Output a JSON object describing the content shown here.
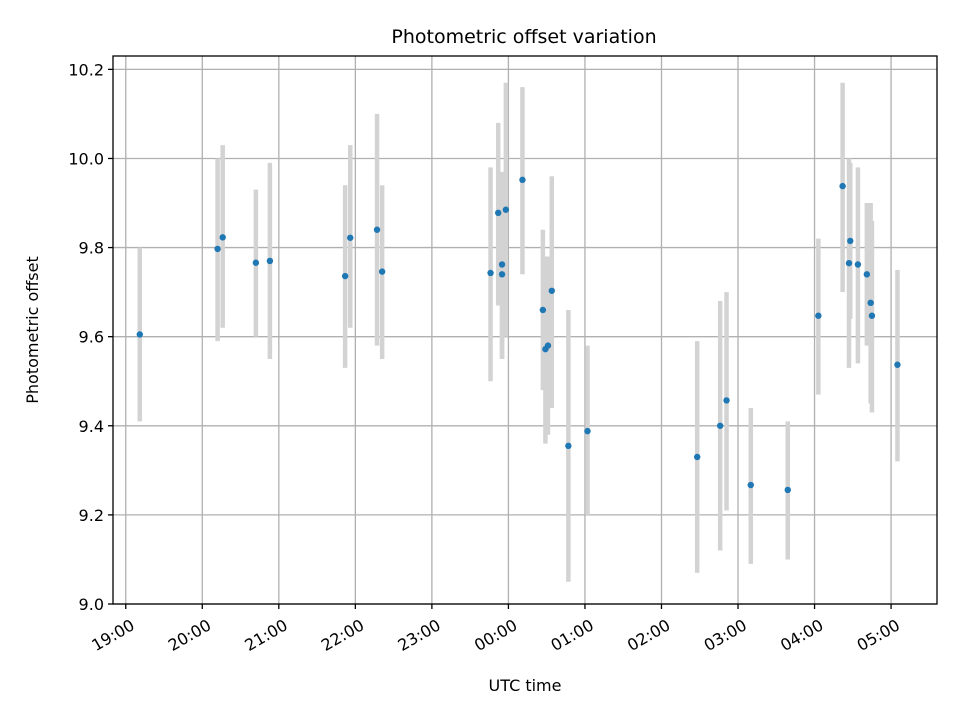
{
  "chart_data": {
    "type": "scatter",
    "title": "Photometric offset variation",
    "xlabel": "UTC time",
    "ylabel": "Photometric offset",
    "grid": true,
    "colors": {
      "point": "#1f77b4",
      "errorbar": "#d3d3d3",
      "grid": "#b0b0b0"
    },
    "xlim": [
      "18:50",
      "05:36"
    ],
    "ylim": [
      9.0,
      10.23
    ],
    "x_ticks": [
      "19:00",
      "20:00",
      "21:00",
      "22:00",
      "23:00",
      "00:00",
      "01:00",
      "02:00",
      "03:00",
      "04:00",
      "05:00"
    ],
    "y_ticks": [
      "9.0",
      "9.2",
      "9.4",
      "9.6",
      "9.8",
      "10.0",
      "10.2"
    ],
    "series": [
      {
        "points": [
          {
            "x": "19:11",
            "y": 9.605,
            "lo": 9.41,
            "hi": 9.8
          },
          {
            "x": "20:12",
            "y": 9.797,
            "lo": 9.59,
            "hi": 10.0
          },
          {
            "x": "20:16",
            "y": 9.823,
            "lo": 9.62,
            "hi": 10.03
          },
          {
            "x": "20:42",
            "y": 9.766,
            "lo": 9.6,
            "hi": 9.93
          },
          {
            "x": "20:53",
            "y": 9.77,
            "lo": 9.55,
            "hi": 9.99
          },
          {
            "x": "21:52",
            "y": 9.736,
            "lo": 9.53,
            "hi": 9.94
          },
          {
            "x": "21:56",
            "y": 9.822,
            "lo": 9.62,
            "hi": 10.03
          },
          {
            "x": "22:17",
            "y": 9.84,
            "lo": 9.58,
            "hi": 10.1
          },
          {
            "x": "22:21",
            "y": 9.746,
            "lo": 9.55,
            "hi": 9.94
          },
          {
            "x": "23:46",
            "y": 9.743,
            "lo": 9.5,
            "hi": 9.98
          },
          {
            "x": "23:52",
            "y": 9.878,
            "lo": 9.67,
            "hi": 10.08
          },
          {
            "x": "23:55",
            "y": 9.762,
            "lo": 9.55,
            "hi": 9.97
          },
          {
            "x": "23:55",
            "y": 9.74,
            "lo": 9.55,
            "hi": 9.93
          },
          {
            "x": "23:58",
            "y": 9.885,
            "lo": 9.6,
            "hi": 10.17
          },
          {
            "x": "00:11",
            "y": 9.952,
            "lo": 9.74,
            "hi": 10.16
          },
          {
            "x": "00:27",
            "y": 9.66,
            "lo": 9.48,
            "hi": 9.84
          },
          {
            "x": "00:29",
            "y": 9.572,
            "lo": 9.36,
            "hi": 9.78
          },
          {
            "x": "00:31",
            "y": 9.58,
            "lo": 9.38,
            "hi": 9.78
          },
          {
            "x": "00:34",
            "y": 9.703,
            "lo": 9.44,
            "hi": 9.96
          },
          {
            "x": "00:47",
            "y": 9.355,
            "lo": 9.05,
            "hi": 9.66
          },
          {
            "x": "01:02",
            "y": 9.388,
            "lo": 9.2,
            "hi": 9.58
          },
          {
            "x": "02:28",
            "y": 9.33,
            "lo": 9.07,
            "hi": 9.59
          },
          {
            "x": "02:46",
            "y": 9.4,
            "lo": 9.12,
            "hi": 9.68
          },
          {
            "x": "02:51",
            "y": 9.457,
            "lo": 9.21,
            "hi": 9.7
          },
          {
            "x": "03:10",
            "y": 9.267,
            "lo": 9.09,
            "hi": 9.44
          },
          {
            "x": "03:39",
            "y": 9.256,
            "lo": 9.1,
            "hi": 9.41
          },
          {
            "x": "04:03",
            "y": 9.647,
            "lo": 9.47,
            "hi": 9.82
          },
          {
            "x": "04:22",
            "y": 9.938,
            "lo": 9.7,
            "hi": 10.17
          },
          {
            "x": "04:27",
            "y": 9.765,
            "lo": 9.53,
            "hi": 10.0
          },
          {
            "x": "04:28",
            "y": 9.815,
            "lo": 9.64,
            "hi": 9.99
          },
          {
            "x": "04:34",
            "y": 9.762,
            "lo": 9.54,
            "hi": 9.98
          },
          {
            "x": "04:41",
            "y": 9.74,
            "lo": 9.58,
            "hi": 9.9
          },
          {
            "x": "04:44",
            "y": 9.676,
            "lo": 9.45,
            "hi": 9.9
          },
          {
            "x": "04:45",
            "y": 9.647,
            "lo": 9.43,
            "hi": 9.86
          },
          {
            "x": "05:05",
            "y": 9.537,
            "lo": 9.32,
            "hi": 9.75
          }
        ]
      }
    ]
  }
}
